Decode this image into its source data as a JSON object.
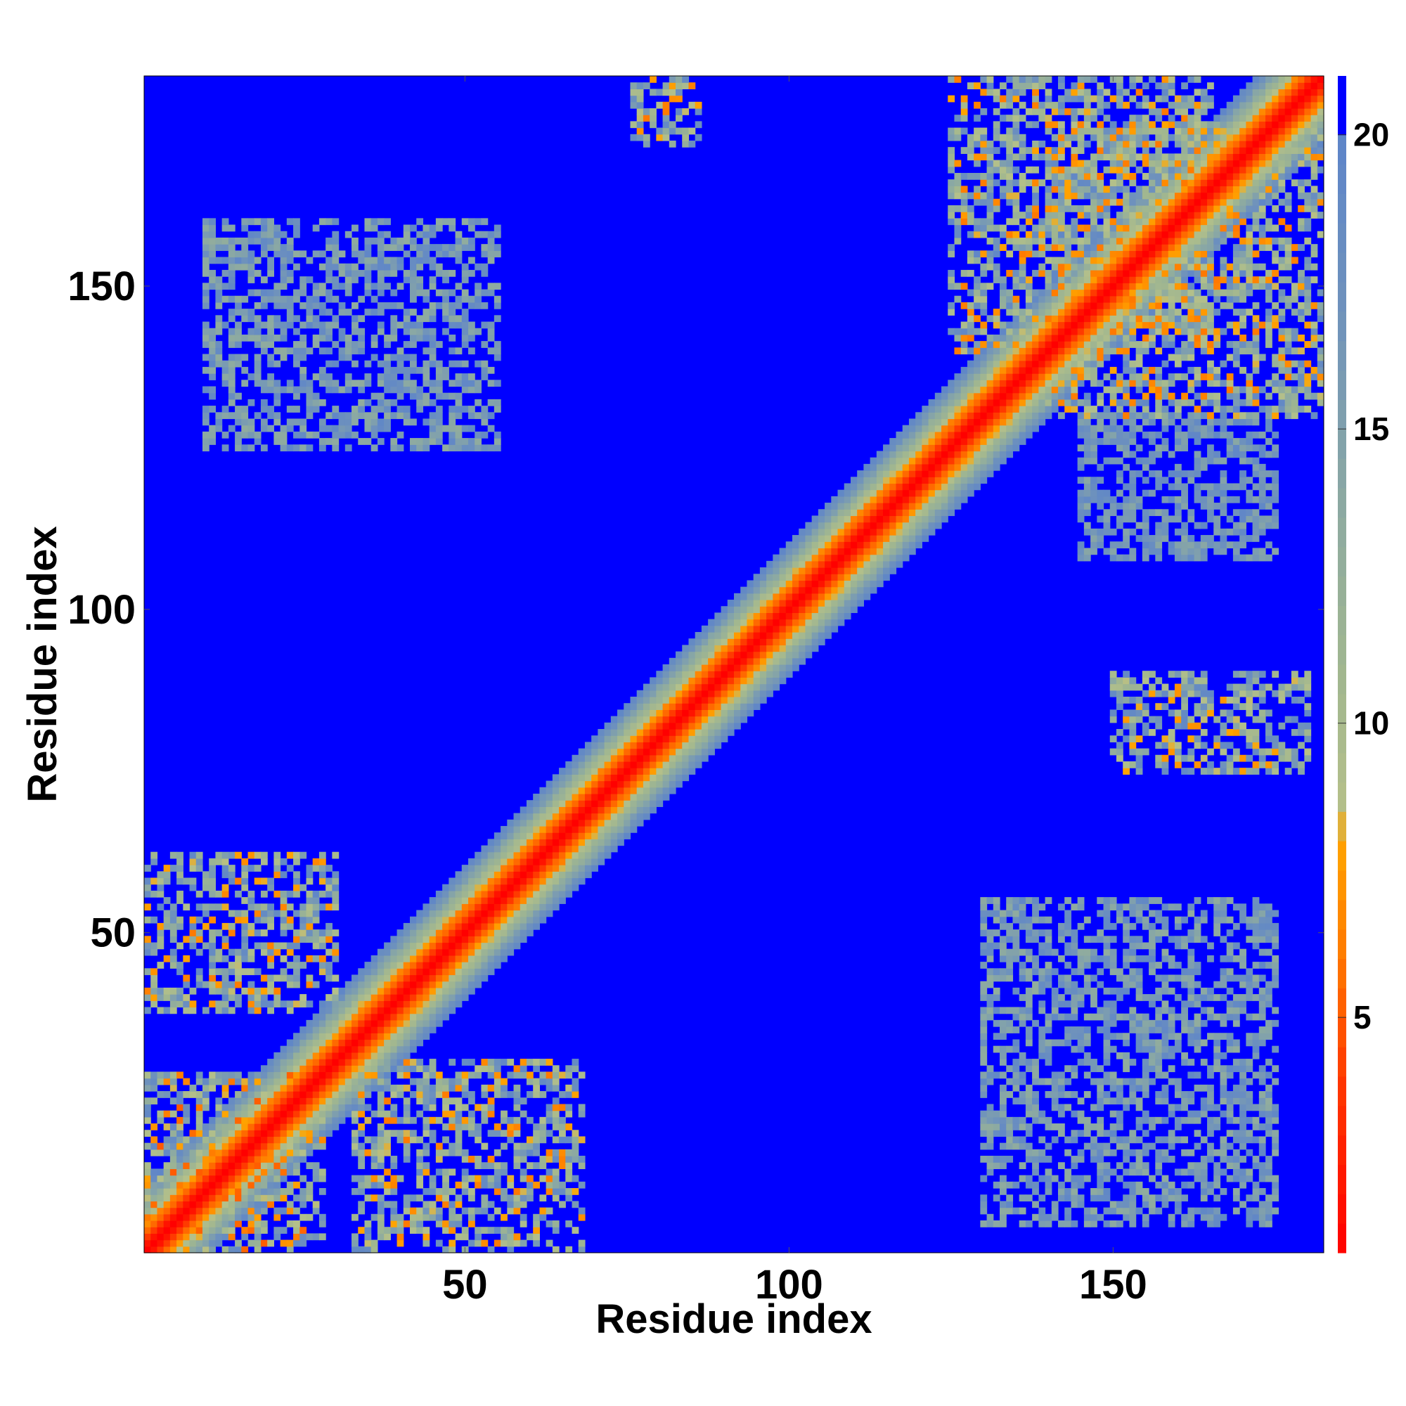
{
  "chart_data": {
    "type": "heatmap",
    "title": "",
    "xlabel": "Residue index",
    "ylabel": "Residue index",
    "xlim": [
      1,
      182
    ],
    "ylim": [
      1,
      182
    ],
    "x_ticks": [
      50,
      100,
      150
    ],
    "y_ticks": [
      50,
      100,
      150
    ],
    "x_tick_labels": [
      "50",
      "100",
      "150"
    ],
    "y_tick_labels": [
      "50",
      "100",
      "150"
    ],
    "n_residues": 182,
    "matrix_kind": "residue-residue distance map",
    "colorbar": {
      "range": [
        1,
        21
      ],
      "ticks": [
        5,
        10,
        15,
        20
      ],
      "tick_labels": [
        "5",
        "10",
        "15",
        "20"
      ],
      "stops": [
        {
          "value": 1,
          "color": "#ff0000"
        },
        {
          "value": 4,
          "color": "#ff3a00"
        },
        {
          "value": 6,
          "color": "#ff7800"
        },
        {
          "value": 8,
          "color": "#ffa500"
        },
        {
          "value": 8.6,
          "color": "#b4c08a"
        },
        {
          "value": 11,
          "color": "#a0b690"
        },
        {
          "value": 14,
          "color": "#8aa8a4"
        },
        {
          "value": 17,
          "color": "#6f92bc"
        },
        {
          "value": 19.8,
          "color": "#5f86c8"
        },
        {
          "value": 20,
          "color": "#0000ff"
        },
        {
          "value": 21,
          "color": "#0000ff"
        }
      ]
    },
    "background_value": 21,
    "diagonal_band": {
      "description": "distance increases with |i-j| along sequence",
      "values_by_offset": [
        1,
        2,
        4,
        5.5,
        7,
        9,
        11,
        13,
        15,
        17,
        19
      ]
    },
    "contact_regions": [
      {
        "x": [
          1,
          30
        ],
        "y": [
          38,
          62
        ],
        "min_value": 6
      },
      {
        "x": [
          33,
          68
        ],
        "y": [
          1,
          30
        ],
        "min_value": 6
      },
      {
        "x": [
          1,
          28
        ],
        "y": [
          1,
          28
        ],
        "min_value": 5
      },
      {
        "x": [
          10,
          55
        ],
        "y": [
          125,
          160
        ],
        "min_value": 13
      },
      {
        "x": [
          76,
          86
        ],
        "y": [
          172,
          182
        ],
        "min_value": 6
      },
      {
        "x": [
          125,
          165
        ],
        "y": [
          140,
          182
        ],
        "min_value": 6
      },
      {
        "x": [
          140,
          182
        ],
        "y": [
          130,
          175
        ],
        "min_value": 6
      },
      {
        "x": [
          145,
          175
        ],
        "y": [
          108,
          130
        ],
        "min_value": 14
      },
      {
        "x": [
          150,
          180
        ],
        "y": [
          75,
          90
        ],
        "min_value": 7
      },
      {
        "x": [
          130,
          175
        ],
        "y": [
          5,
          55
        ],
        "min_value": 13
      }
    ]
  }
}
